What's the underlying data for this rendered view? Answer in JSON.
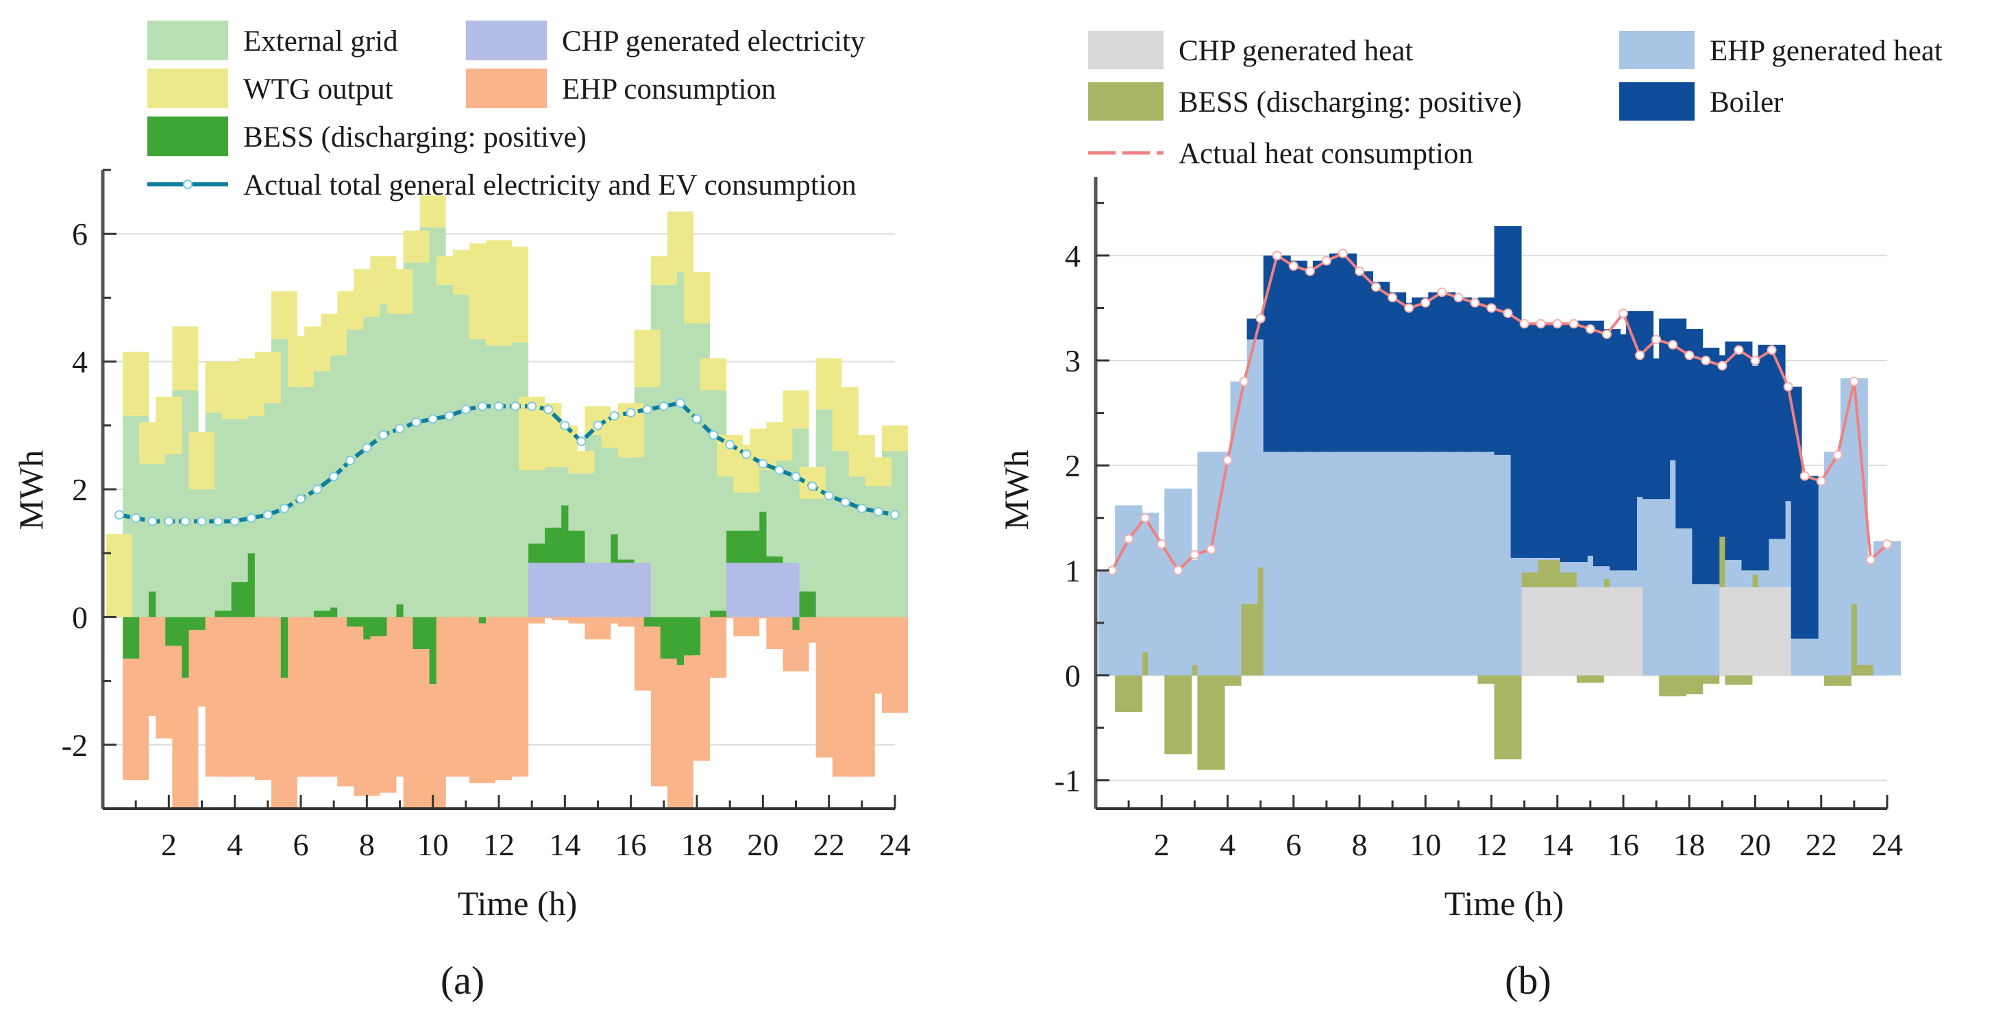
{
  "figure": {
    "panel_labels": [
      "(a)",
      "(b)"
    ]
  },
  "chart_data": [
    {
      "id": "a",
      "type": "bar",
      "stacked": true,
      "xlabel": "Time (h)",
      "ylabel": "MWh",
      "xlim": [
        0,
        24
      ],
      "ylim": [
        -3,
        7
      ],
      "xticks": [
        2,
        4,
        6,
        8,
        10,
        12,
        14,
        16,
        18,
        20,
        22,
        24
      ],
      "xtick_labels": [
        "2",
        "4",
        "6",
        "8",
        "10",
        "12",
        "14",
        "16",
        "18",
        "20",
        "22",
        "24"
      ],
      "yticks": [
        -2,
        0,
        2,
        4,
        6
      ],
      "ytick_labels": [
        "-2",
        "0",
        "2",
        "4",
        "6"
      ],
      "grid": true,
      "legend_position": "top",
      "x": [
        0.5,
        1,
        1.5,
        2,
        2.5,
        3,
        3.5,
        4,
        4.5,
        5,
        5.5,
        6,
        6.5,
        7,
        7.5,
        8,
        8.5,
        9,
        9.5,
        10,
        10.5,
        11,
        11.5,
        12,
        12.5,
        13,
        13.5,
        14,
        14.5,
        15,
        15.5,
        16,
        16.5,
        17,
        17.5,
        18,
        18.5,
        19,
        19.5,
        20,
        20.5,
        21,
        21.5,
        22,
        22.5,
        23,
        23.5,
        24
      ],
      "series": [
        {
          "name": "CHP generated electricity",
          "color": "#b3bce6",
          "kind": "bar_pos",
          "values": [
            0,
            0,
            0,
            0,
            0,
            0,
            0,
            0,
            0,
            0,
            0,
            0,
            0,
            0,
            0,
            0,
            0,
            0,
            0,
            0,
            0,
            0,
            0,
            0,
            0,
            0.85,
            0.85,
            0.85,
            0.85,
            0.85,
            0.85,
            0.85,
            0.85,
            0,
            0,
            0,
            0,
            0.85,
            0.85,
            0.85,
            0.85,
            0.85,
            0,
            0,
            0,
            0,
            0,
            0
          ]
        },
        {
          "name": "BESS (discharging: positive)",
          "color": "#3fa535",
          "kind": "bar_signed",
          "values": [
            0,
            -0.65,
            0.4,
            -0.45,
            -0.95,
            -0.2,
            0.1,
            0.55,
            1.0,
            0,
            -0.95,
            0,
            0.1,
            0.15,
            -0.15,
            -0.35,
            -0.3,
            0.2,
            -0.5,
            -1.05,
            0,
            0,
            -0.1,
            0,
            0,
            0.3,
            0.55,
            0.9,
            0.5,
            0,
            0.45,
            0.05,
            -0.15,
            -0.65,
            -0.75,
            -0.6,
            0.1,
            0.5,
            0.5,
            0.8,
            0.1,
            -0.2,
            0.4,
            0,
            0,
            0,
            0,
            0
          ]
        },
        {
          "name": "External grid",
          "color": "#b7dfb3",
          "kind": "bar_pos",
          "values": [
            0,
            3.15,
            2.0,
            2.55,
            3.55,
            2.0,
            3.1,
            2.55,
            2.15,
            3.35,
            4.35,
            3.6,
            3.75,
            3.95,
            4.5,
            4.7,
            4.9,
            4.55,
            5.55,
            6.1,
            5.2,
            5.05,
            4.35,
            4.25,
            4.3,
            1.15,
            0.95,
            0.6,
            0.9,
            2.0,
            1.35,
            1.6,
            2.75,
            5.2,
            5.4,
            4.6,
            3.45,
            0.85,
            0.6,
            0.65,
            1.5,
            2.1,
            1.45,
            3.25,
            2.6,
            2.2,
            2.05,
            2.6
          ]
        },
        {
          "name": "WTG output",
          "color": "#ede98a",
          "kind": "bar_pos",
          "values": [
            1.3,
            1.0,
            0.65,
            0.9,
            1.0,
            0.9,
            0.8,
            0.9,
            0.9,
            0.8,
            0.75,
            0.8,
            0.7,
            0.65,
            0.6,
            0.75,
            0.75,
            0.7,
            0.5,
            0.5,
            0.45,
            0.7,
            1.5,
            1.65,
            1.5,
            1.15,
            1.0,
            0.65,
            0.35,
            0.45,
            0.55,
            0.85,
            0.9,
            0.45,
            0.95,
            0.8,
            0.5,
            0.65,
            0.75,
            0.65,
            0.6,
            0.6,
            0.5,
            0.8,
            1.0,
            0.65,
            0.45,
            0.4
          ]
        },
        {
          "name": "EHP consumption",
          "color": "#f9b48a",
          "kind": "bar_neg",
          "values": [
            0,
            -1.9,
            -1.55,
            -1.45,
            -2.05,
            -1.2,
            -2.5,
            -2.5,
            -2.5,
            -2.55,
            -2.05,
            -2.5,
            -2.5,
            -2.5,
            -2.5,
            -2.45,
            -2.45,
            -2.5,
            -2.5,
            -1.95,
            -2.5,
            -2.5,
            -2.5,
            -2.55,
            -2.5,
            -0.1,
            -0.02,
            -0.05,
            -0.1,
            -0.35,
            -0.1,
            -0.15,
            -1.0,
            -2.0,
            -2.25,
            -1.65,
            -0.95,
            -0.02,
            -0.3,
            -0.02,
            -0.5,
            -0.65,
            -0.4,
            -2.2,
            -2.5,
            -2.5,
            -1.2,
            -1.5
          ]
        },
        {
          "name": "Actual total general electricity and EV consumption",
          "color": "#0e7fa0",
          "kind": "line",
          "values": [
            1.6,
            1.55,
            1.5,
            1.5,
            1.5,
            1.5,
            1.5,
            1.5,
            1.55,
            1.6,
            1.7,
            1.85,
            2.0,
            2.2,
            2.45,
            2.65,
            2.85,
            2.95,
            3.05,
            3.1,
            3.15,
            3.25,
            3.3,
            3.3,
            3.3,
            3.3,
            3.25,
            3.0,
            2.75,
            3.0,
            3.15,
            3.2,
            3.25,
            3.3,
            3.35,
            3.1,
            2.85,
            2.7,
            2.55,
            2.4,
            2.3,
            2.2,
            2.05,
            1.9,
            1.8,
            1.7,
            1.65,
            1.6
          ]
        }
      ],
      "legend": [
        {
          "label": "External grid",
          "color": "#b7dfb3",
          "kind": "box"
        },
        {
          "label": "CHP generated electricity",
          "color": "#b3bce6",
          "kind": "box"
        },
        {
          "label": "WTG output",
          "color": "#ede98a",
          "kind": "box"
        },
        {
          "label": "EHP consumption",
          "color": "#f9b48a",
          "kind": "box"
        },
        {
          "label": "BESS (discharging: positive)",
          "color": "#3fa535",
          "kind": "box"
        },
        {
          "label": "Actual total general electricity and EV consumption",
          "color": "#0e7fa0",
          "kind": "line"
        }
      ]
    },
    {
      "id": "b",
      "type": "bar",
      "stacked": true,
      "xlabel": "Time (h)",
      "ylabel": "MWh",
      "xlim": [
        0,
        24
      ],
      "ylim": [
        -1.27,
        4.75
      ],
      "xticks": [
        2,
        4,
        6,
        8,
        10,
        12,
        14,
        16,
        18,
        20,
        22,
        24
      ],
      "xtick_labels": [
        "2",
        "4",
        "6",
        "8",
        "10",
        "12",
        "14",
        "16",
        "18",
        "20",
        "22",
        "24"
      ],
      "yticks": [
        -1,
        0,
        1,
        2,
        3,
        4
      ],
      "ytick_labels": [
        "-1",
        "0",
        "1",
        "2",
        "3",
        "4"
      ],
      "grid": true,
      "legend_position": "top",
      "x": [
        0.5,
        1,
        1.5,
        2,
        2.5,
        3,
        3.5,
        4,
        4.5,
        5,
        5.5,
        6,
        6.5,
        7,
        7.5,
        8,
        8.5,
        9,
        9.5,
        10,
        10.5,
        11,
        11.5,
        12,
        12.5,
        13,
        13.5,
        14,
        14.5,
        15,
        15.5,
        16,
        16.5,
        17,
        17.5,
        18,
        18.5,
        19,
        19.5,
        20,
        20.5,
        21,
        21.5,
        22,
        22.5,
        23,
        23.5,
        24
      ],
      "series": [
        {
          "name": "CHP generated heat",
          "color": "#d9d9d9",
          "kind": "bar_pos",
          "values": [
            0,
            0,
            0,
            0,
            0,
            0,
            0,
            0,
            0,
            0,
            0,
            0,
            0,
            0,
            0,
            0,
            0,
            0,
            0,
            0,
            0,
            0,
            0,
            0,
            0,
            0.84,
            0.84,
            0.84,
            0.84,
            0.84,
            0.84,
            0.84,
            0.84,
            0,
            0,
            0,
            0,
            0.84,
            0.84,
            0.84,
            0.84,
            0.84,
            0,
            0,
            0,
            0,
            0,
            0
          ]
        },
        {
          "name": "BESS (discharging: positive)",
          "color": "#a9b465",
          "kind": "bar_signed",
          "values": [
            0,
            -0.35,
            0.22,
            0,
            -0.75,
            0.1,
            -0.9,
            -0.1,
            0.68,
            1.03,
            0,
            0,
            0,
            0,
            0,
            0,
            0,
            0,
            0,
            0,
            0,
            0,
            0,
            -0.08,
            -0.8,
            0.14,
            0.26,
            0.26,
            0.14,
            -0.07,
            0.08,
            0,
            0,
            0,
            -0.2,
            -0.18,
            -0.08,
            0.48,
            -0.09,
            0.12,
            0,
            0,
            0,
            0,
            -0.1,
            0.68,
            0.1,
            0
          ]
        },
        {
          "name": "EHP generated heat",
          "color": "#a8c5e5",
          "kind": "bar_pos",
          "values": [
            1.0,
            1.62,
            1.33,
            1.25,
            1.78,
            1.0,
            2.13,
            2.13,
            2.12,
            2.17,
            2.13,
            2.13,
            2.13,
            2.13,
            2.13,
            2.13,
            2.13,
            2.13,
            2.13,
            2.13,
            2.13,
            2.13,
            2.13,
            2.13,
            2.1,
            0.14,
            0.02,
            0.02,
            0.1,
            0.3,
            0.12,
            0.16,
            0.86,
            1.68,
            2.05,
            1.4,
            0.87,
            0,
            0.26,
            0.04,
            0.46,
            0.82,
            0.35,
            1.88,
            2.13,
            2.15,
            1.02,
            1.28
          ]
        },
        {
          "name": "Boiler",
          "color": "#0f4c99",
          "kind": "bar_pos",
          "values": [
            0,
            0,
            0,
            0,
            0,
            0,
            0,
            0,
            0,
            0.2,
            1.87,
            1.82,
            1.75,
            1.82,
            1.89,
            1.72,
            1.62,
            1.52,
            1.42,
            1.47,
            1.52,
            1.47,
            1.42,
            1.47,
            2.18,
            2.23,
            2.23,
            2.23,
            2.25,
            2.24,
            2.26,
            2.25,
            1.77,
            1.34,
            1.35,
            1.9,
            2.25,
            1.73,
            2.08,
            1.95,
            1.85,
            1.09,
            1.55,
            0,
            0,
            0,
            0,
            0
          ]
        },
        {
          "name": "Actual heat consumption",
          "color": "#f08080",
          "kind": "line",
          "values": [
            1.0,
            1.3,
            1.5,
            1.25,
            1.0,
            1.15,
            1.2,
            2.05,
            2.8,
            3.4,
            4.0,
            3.9,
            3.85,
            3.95,
            4.02,
            3.85,
            3.7,
            3.6,
            3.5,
            3.55,
            3.65,
            3.6,
            3.55,
            3.5,
            3.45,
            3.35,
            3.35,
            3.35,
            3.35,
            3.3,
            3.25,
            3.45,
            3.05,
            3.2,
            3.15,
            3.05,
            3.0,
            2.95,
            3.1,
            3.0,
            3.1,
            2.75,
            1.9,
            1.85,
            2.1,
            2.8,
            1.1,
            1.25
          ]
        }
      ],
      "legend": [
        {
          "label": "CHP generated heat",
          "color": "#d9d9d9",
          "kind": "box"
        },
        {
          "label": "EHP generated heat",
          "color": "#a8c5e5",
          "kind": "box"
        },
        {
          "label": "BESS (discharging: positive)",
          "color": "#a9b465",
          "kind": "box"
        },
        {
          "label": "Boiler",
          "color": "#0f4c99",
          "kind": "box"
        },
        {
          "label": "Actual heat consumption",
          "color": "#f08080",
          "kind": "dashline"
        }
      ]
    }
  ]
}
